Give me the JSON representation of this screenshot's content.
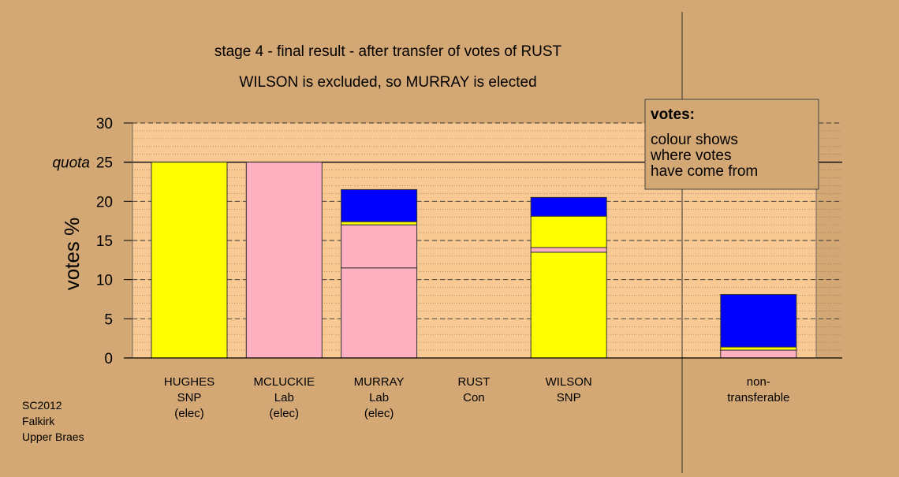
{
  "chart_data": {
    "type": "bar",
    "stacked": true,
    "title": "stage 4 - final result - after transfer of votes of RUST",
    "subtitle": "WILSON is excluded, so MURRAY is elected",
    "y_label": "votes %",
    "categories": [
      [
        "HUGHES",
        "SNP",
        "(elec)"
      ],
      [
        "MCLUCKIE",
        "Lab",
        "(elec)"
      ],
      [
        "MURRAY",
        "Lab",
        "(elec)"
      ],
      [
        "RUST",
        "Con"
      ],
      [
        "WILSON",
        "SNP"
      ],
      [
        "non-",
        "transferable"
      ]
    ],
    "bars": [
      [
        {
          "color": "#ffff00",
          "value": 25
        }
      ],
      [
        {
          "color": "#ffb1c1",
          "value": 25
        }
      ],
      [
        {
          "color": "#ffb1c1",
          "value": 11.5
        },
        {
          "color": "#ffb1c1",
          "value": 5.5
        },
        {
          "color": "#ffff00",
          "value": 0.4
        },
        {
          "color": "#0000ff",
          "value": 4.1
        }
      ],
      [],
      [
        {
          "color": "#ffff00",
          "value": 13.5
        },
        {
          "color": "#ffb1c1",
          "value": 0.6
        },
        {
          "color": "#ffff00",
          "value": 4.0
        },
        {
          "color": "#0000ff",
          "value": 2.4
        }
      ],
      [
        {
          "color": "#ffb1c1",
          "value": 1.0
        },
        {
          "color": "#ffff00",
          "value": 0.4
        },
        {
          "color": "#0000ff",
          "value": 6.7
        }
      ]
    ],
    "ylim": [
      0,
      30
    ],
    "yticks": [
      0,
      5,
      10,
      15,
      20,
      25,
      30
    ],
    "quota": {
      "value": 25,
      "label": "quota"
    },
    "minor_grid_step": 1,
    "grid": true,
    "legend": {
      "corner": "top-right",
      "title": "votes:",
      "lines": [
        "colour shows",
        "where votes",
        "have come from"
      ]
    },
    "note": [
      "SC2012",
      "Falkirk",
      "Upper Braes"
    ]
  }
}
